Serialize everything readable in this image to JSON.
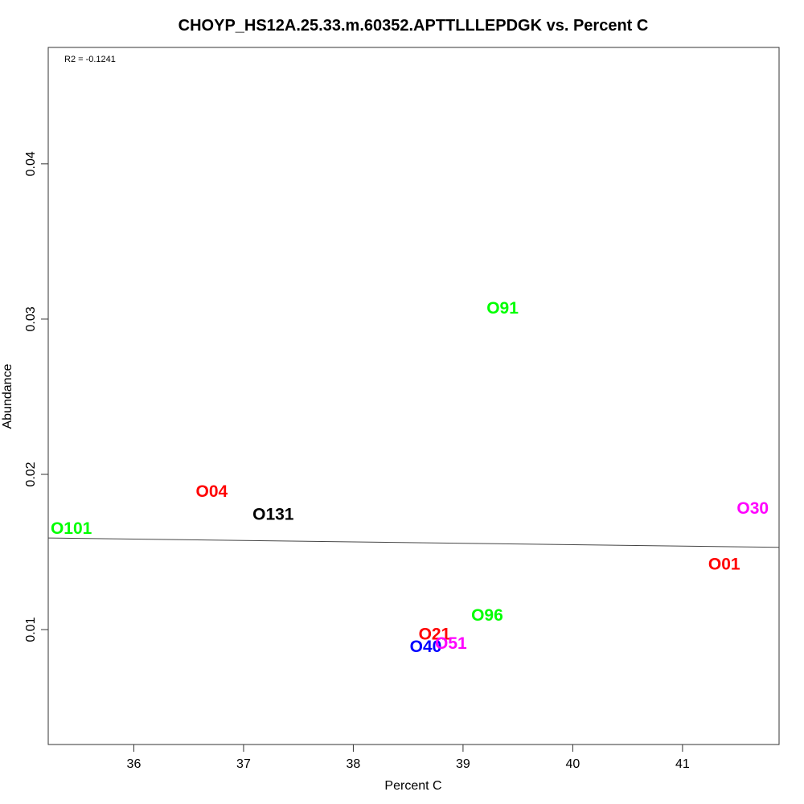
{
  "chart_data": {
    "type": "scatter",
    "title": "CHOYP_HS12A.25.33.m.60352.APTTLLLEPDGK vs. Percent C",
    "xlabel": "Percent C",
    "ylabel": "Abundance",
    "annotation": "R2 = -0.1241",
    "xlim": [
      35.22,
      41.88
    ],
    "ylim": [
      0.0026,
      0.0475
    ],
    "x_ticks": [
      36,
      37,
      38,
      39,
      40,
      41
    ],
    "y_ticks": [
      0.01,
      0.02,
      0.03,
      0.04
    ],
    "x_tick_labels": [
      "36",
      "37",
      "38",
      "39",
      "40",
      "41"
    ],
    "y_tick_labels": [
      "0.01",
      "0.02",
      "0.03",
      "0.04"
    ],
    "grid": false,
    "legend": "none",
    "points": [
      {
        "label": "O101",
        "x": 35.43,
        "y": 0.0165,
        "color": "#00ff00"
      },
      {
        "label": "O04",
        "x": 36.71,
        "y": 0.0189,
        "color": "#ff0000"
      },
      {
        "label": "O131",
        "x": 37.27,
        "y": 0.0174,
        "color": "#000000"
      },
      {
        "label": "O91",
        "x": 39.36,
        "y": 0.0307,
        "color": "#00ff00"
      },
      {
        "label": "O96",
        "x": 39.22,
        "y": 0.0109,
        "color": "#00ff00"
      },
      {
        "label": "O21",
        "x": 38.74,
        "y": 0.0097,
        "color": "#ff0000"
      },
      {
        "label": "O40",
        "x": 38.66,
        "y": 0.0089,
        "color": "#0000ff"
      },
      {
        "label": "O51",
        "x": 38.89,
        "y": 0.0091,
        "color": "#ff00ff"
      },
      {
        "label": "O30",
        "x": 41.64,
        "y": 0.0178,
        "color": "#ff00ff"
      },
      {
        "label": "O01",
        "x": 41.38,
        "y": 0.0142,
        "color": "#ff0000"
      }
    ],
    "fit_line": {
      "x": [
        35.22,
        41.88
      ],
      "y": [
        0.0159,
        0.0153
      ]
    }
  }
}
